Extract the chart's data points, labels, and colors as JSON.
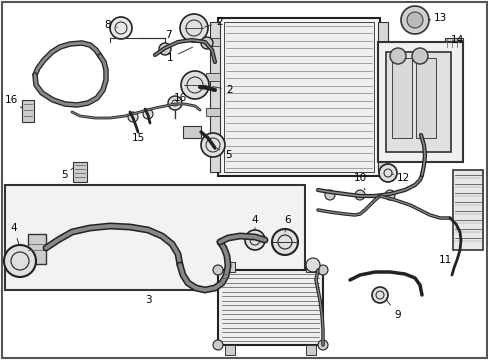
{
  "background_color": "#ffffff",
  "fig_width": 4.89,
  "fig_height": 3.6,
  "dpi": 100,
  "label_fontsize": 7.5,
  "text_color": "#000000",
  "line_color": "#222222",
  "lw_thick": 2.5,
  "lw_med": 1.5,
  "lw_thin": 0.9,
  "lw_hair": 0.5
}
